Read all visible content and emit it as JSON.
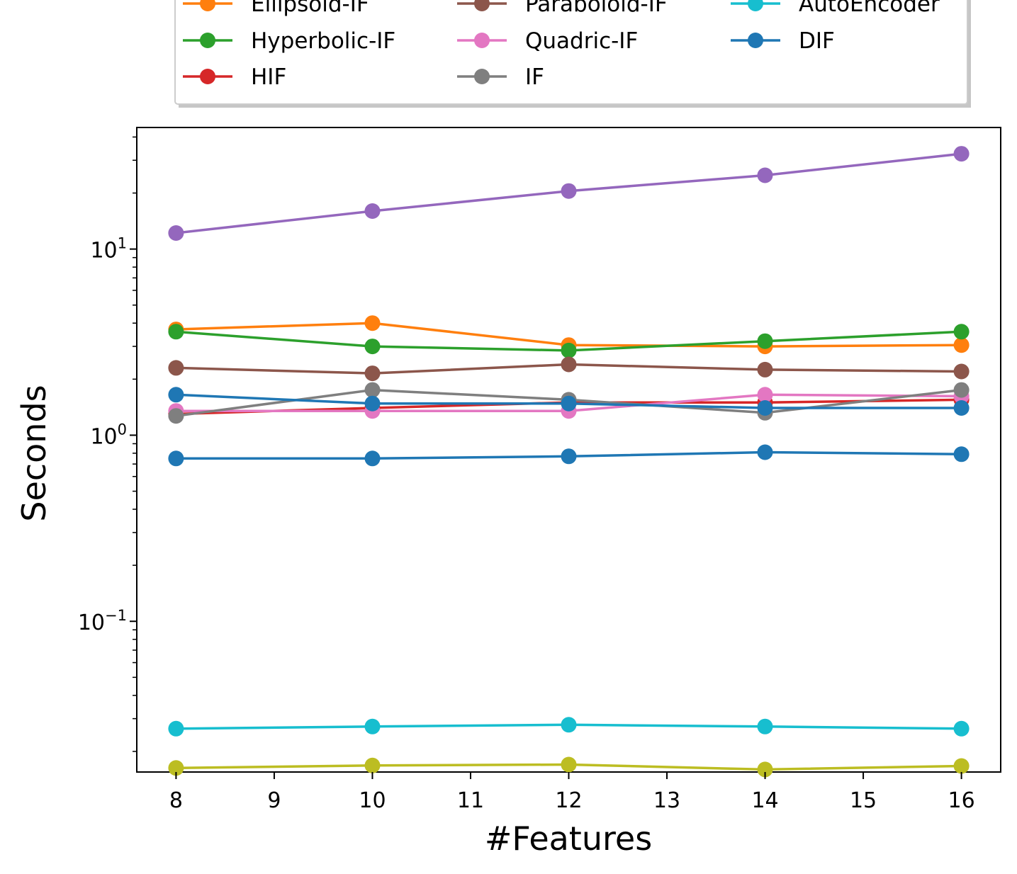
{
  "chart_data": {
    "type": "line",
    "xlabel": "#Features",
    "ylabel": "Seconds",
    "yscale": "log",
    "x": [
      8,
      10,
      12,
      14,
      16
    ],
    "xticks": [
      "8",
      "9",
      "10",
      "11",
      "12",
      "13",
      "14",
      "15",
      "16"
    ],
    "xlim": [
      7.6,
      16.4
    ],
    "ylim": [
      0.0155,
      45
    ],
    "yticks": [
      {
        "value": 10,
        "base": "10",
        "exp": "1"
      },
      {
        "value": 1,
        "base": "10",
        "exp": "0"
      },
      {
        "value": 0.1,
        "base": "10",
        "exp": "−1"
      }
    ],
    "legend": {
      "placement": "top",
      "columns": 3
    },
    "series": [
      {
        "name": "Ellipsoid-IF",
        "color": "#ff7f0e",
        "values": [
          3.7,
          4.0,
          3.05,
          3.0,
          3.05
        ]
      },
      {
        "name": "Hyperbolic-IF",
        "color": "#2ca02c",
        "values": [
          3.6,
          3.0,
          2.85,
          3.2,
          3.6
        ]
      },
      {
        "name": "HIF",
        "color": "#d62728",
        "values": [
          1.3,
          1.4,
          1.5,
          1.5,
          1.55
        ]
      },
      {
        "name": "Paraboloid-IF",
        "color": "#8c564b",
        "values": [
          2.3,
          2.15,
          2.4,
          2.25,
          2.2
        ]
      },
      {
        "name": "Quadric-IF",
        "color": "#e377c2",
        "values": [
          1.35,
          1.35,
          1.35,
          1.65,
          1.62
        ]
      },
      {
        "name": "IF",
        "color": "#7f7f7f",
        "values": [
          1.27,
          1.75,
          1.55,
          1.32,
          1.75
        ]
      },
      {
        "name": "AutoEncoder",
        "color": "#17becf",
        "values": [
          0.0265,
          0.0272,
          0.0278,
          0.0272,
          0.0265
        ]
      },
      {
        "name": "DIF",
        "color": "#1f77b4",
        "values": [
          0.75,
          0.75,
          0.77,
          0.81,
          0.79
        ]
      },
      {
        "name": "",
        "color": "#9467bd",
        "values": [
          12.2,
          16.0,
          20.5,
          24.9,
          32.5
        ]
      },
      {
        "name": "",
        "color": "#1f77b4",
        "values": [
          1.65,
          1.48,
          1.48,
          1.4,
          1.4
        ]
      },
      {
        "name": "",
        "color": "#bcbd22",
        "values": [
          0.0163,
          0.0168,
          0.017,
          0.016,
          0.0167
        ]
      }
    ]
  }
}
